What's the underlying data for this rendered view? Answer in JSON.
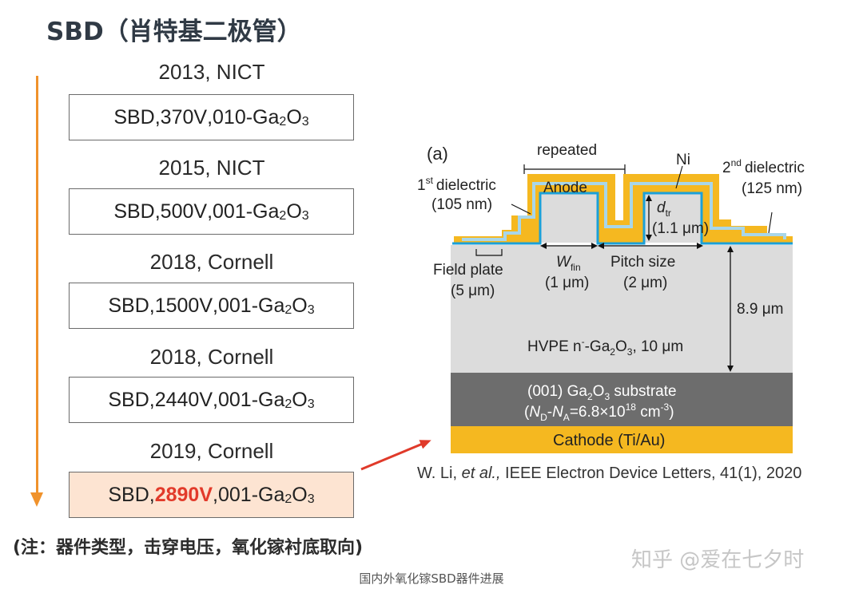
{
  "title": "SBD（肖特基二极管）",
  "timeline": [
    {
      "year": "2013, NICT",
      "type": "SBD",
      "voltage": "370V",
      "orientation": "010",
      "material": "-Ga",
      "sub1": "2",
      "mid": "O",
      "sub2": "3",
      "highlight": false
    },
    {
      "year": "2015, NICT",
      "type": "SBD",
      "voltage": "500V",
      "orientation": "001",
      "material": "-Ga",
      "sub1": "2",
      "mid": "O",
      "sub2": "3",
      "highlight": false
    },
    {
      "year": "2018, Cornell",
      "type": "SBD",
      "voltage": "1500V",
      "orientation": "001",
      "material": "-Ga",
      "sub1": "2",
      "mid": "O",
      "sub2": "3",
      "highlight": false
    },
    {
      "year": "2018, Cornell",
      "type": "SBD",
      "voltage": "2440V",
      "orientation": "001",
      "material": "-Ga",
      "sub1": "2",
      "mid": "O",
      "sub2": "3",
      "highlight": false
    },
    {
      "year": "2019, Cornell",
      "type": "SBD",
      "voltage": "2890V",
      "orientation": "001",
      "material": "-Ga",
      "sub1": "2",
      "mid": "O",
      "sub2": "3",
      "highlight": true
    }
  ],
  "note": "(注：器件类型，击穿电压，氧化镓衬底取向)",
  "figure": {
    "panel_label": "(a)",
    "repeated": "repeated",
    "ni": "Ni",
    "anode": "Anode",
    "first_dielectric_sup": "st",
    "first_dielectric_a": "1",
    "first_dielectric_b": "dielectric",
    "first_dielectric_thk": "(105 nm)",
    "second_dielectric_a": "2",
    "second_dielectric_sup": "nd",
    "second_dielectric_b": "dielectric",
    "second_dielectric_thk": "(125 nm)",
    "dtr_d": "d",
    "dtr_sub": "tr",
    "dtr_val": "(1.1 μm)",
    "field_plate": "Field plate",
    "field_plate_val": "(5 μm)",
    "wfin_w": "W",
    "wfin_sub": "fin",
    "wfin_val": "(1 μm)",
    "pitch": "Pitch size",
    "pitch_val": "(2 μm)",
    "epi_thickness": "8.9 μm",
    "hvpe_a": "HVPE n",
    "hvpe_sup": "-",
    "hvpe_b": "-Ga",
    "hvpe_sub1": "2",
    "hvpe_c": "O",
    "hvpe_sub2": "3",
    "hvpe_d": ", 10 μm",
    "substrate_a": "(001) Ga",
    "substrate_sub1": "2",
    "substrate_b": "O",
    "substrate_sub2": "3",
    "substrate_c": " substrate",
    "doping_open": "(",
    "doping_nd": "N",
    "doping_nd_sub": "D",
    "doping_dash": "-",
    "doping_na": "N",
    "doping_na_sub": "A",
    "doping_val": "=6.8×10",
    "doping_exp": "18",
    "doping_unit": " cm",
    "doping_unit_exp": "-3",
    "doping_close": ")",
    "cathode": "Cathode (Ti/Au)"
  },
  "reference": {
    "prefix": "W. Li, ",
    "etal": "et al.,",
    "rest": " IEEE Electron Device Letters, 41(1), 2020"
  },
  "watermark": "知乎 @爱在七夕时",
  "caption": "国内外氧化镓SBD器件进展",
  "colors": {
    "arrow": "#f0922b",
    "highlight_bg": "#fde4d2",
    "highlight_text": "#e23a2a",
    "gold": "#f5b820",
    "blue": "#1ba0d8",
    "drift": "#dcdcdc",
    "substrate": "#6d6d6d",
    "pointer_arrow": "#e03a2a"
  }
}
